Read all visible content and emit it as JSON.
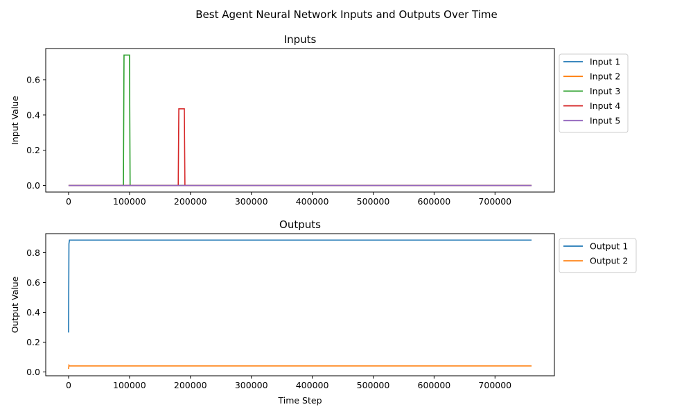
{
  "figure_title": "Best Agent Neural Network Inputs and Outputs Over Time",
  "chart_data": [
    {
      "type": "line",
      "title": "Inputs",
      "xlabel": "",
      "ylabel": "Input Value",
      "xlim": [
        -37500,
        797500
      ],
      "ylim": [
        -0.037,
        0.777
      ],
      "xticks": [
        0,
        100000,
        200000,
        300000,
        400000,
        500000,
        600000,
        700000
      ],
      "xtick_labels": [
        "0",
        "100000",
        "200000",
        "300000",
        "400000",
        "500000",
        "600000",
        "700000"
      ],
      "yticks": [
        0.0,
        0.2,
        0.4,
        0.6
      ],
      "ytick_labels": [
        "0.0",
        "0.2",
        "0.4",
        "0.6"
      ],
      "grid": false,
      "legend_position": "outside upper right",
      "series": [
        {
          "name": "Input 1",
          "color": "#1f77b4",
          "x": [
            0,
            760000
          ],
          "y": [
            0,
            0
          ]
        },
        {
          "name": "Input 2",
          "color": "#ff7f0e",
          "x": [
            0,
            760000
          ],
          "y": [
            0,
            0
          ]
        },
        {
          "name": "Input 3",
          "color": "#2ca02c",
          "x": [
            0,
            90000,
            91000,
            100000,
            101000,
            760000
          ],
          "y": [
            0,
            0,
            0.74,
            0.74,
            0,
            0
          ]
        },
        {
          "name": "Input 4",
          "color": "#d62728",
          "x": [
            0,
            180000,
            181000,
            190000,
            191000,
            760000
          ],
          "y": [
            0,
            0,
            0.435,
            0.435,
            0,
            0
          ]
        },
        {
          "name": "Input 5",
          "color": "#9467bd",
          "x": [
            0,
            760000
          ],
          "y": [
            0,
            0
          ]
        }
      ]
    },
    {
      "type": "line",
      "title": "Outputs",
      "xlabel": "Time Step",
      "ylabel": "Output Value",
      "xlim": [
        -37500,
        797500
      ],
      "ylim": [
        -0.026,
        0.928
      ],
      "xticks": [
        0,
        100000,
        200000,
        300000,
        400000,
        500000,
        600000,
        700000
      ],
      "xtick_labels": [
        "0",
        "100000",
        "200000",
        "300000",
        "400000",
        "500000",
        "600000",
        "700000"
      ],
      "yticks": [
        0.0,
        0.2,
        0.4,
        0.6,
        0.8
      ],
      "ytick_labels": [
        "0.0",
        "0.2",
        "0.4",
        "0.6",
        "0.8"
      ],
      "grid": false,
      "legend_position": "outside upper right",
      "series": [
        {
          "name": "Output 1",
          "color": "#1f77b4",
          "x": [
            0,
            600,
            1500,
            760000
          ],
          "y": [
            0.265,
            0.86,
            0.885,
            0.885
          ]
        },
        {
          "name": "Output 2",
          "color": "#ff7f0e",
          "x": [
            0,
            600,
            1500,
            760000
          ],
          "y": [
            0.02,
            0.045,
            0.04,
            0.04
          ]
        }
      ]
    }
  ]
}
